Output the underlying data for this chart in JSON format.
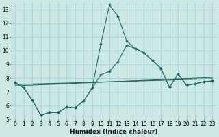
{
  "title": "",
  "xlabel": "Humidex (Indice chaleur)",
  "bg_color": "#cce8e4",
  "grid_color": "#aacfcc",
  "line_color": "#1e6b5e",
  "xlim": [
    -0.5,
    23.5
  ],
  "ylim": [
    5,
    13.5
  ],
  "xticks": [
    0,
    1,
    2,
    3,
    4,
    5,
    6,
    7,
    8,
    9,
    10,
    11,
    12,
    13,
    14,
    15,
    16,
    17,
    18,
    19,
    20,
    21,
    22,
    23
  ],
  "yticks": [
    5,
    6,
    7,
    8,
    9,
    10,
    11,
    12,
    13
  ],
  "curve_spike_x": [
    0,
    1,
    2,
    3,
    4,
    5,
    6,
    7,
    8,
    9,
    10,
    11,
    12,
    13,
    14,
    15,
    16,
    17,
    18,
    19,
    20,
    21,
    22,
    23
  ],
  "curve_spike_y": [
    7.7,
    7.3,
    6.4,
    5.3,
    5.5,
    5.5,
    5.9,
    5.85,
    6.35,
    7.3,
    10.5,
    13.3,
    12.5,
    10.7,
    10.15,
    9.85,
    9.3,
    8.7,
    7.35,
    8.3,
    7.5,
    7.6,
    7.75,
    7.8
  ],
  "curve_lower_x": [
    0,
    1,
    2,
    3,
    4,
    5,
    6,
    7,
    8,
    9,
    10,
    11,
    12,
    13,
    14,
    15,
    16,
    17,
    18,
    19,
    20,
    21,
    22,
    23
  ],
  "curve_lower_y": [
    7.7,
    7.3,
    6.4,
    5.3,
    5.5,
    5.5,
    5.9,
    5.85,
    6.35,
    7.3,
    8.25,
    8.5,
    9.2,
    10.4,
    10.15,
    9.85,
    9.3,
    8.7,
    7.35,
    8.3,
    7.5,
    7.6,
    7.75,
    7.8
  ],
  "line1_x": [
    0,
    23
  ],
  "line1_y": [
    7.55,
    7.95
  ],
  "line2_x": [
    0,
    23
  ],
  "line2_y": [
    7.45,
    8.05
  ]
}
